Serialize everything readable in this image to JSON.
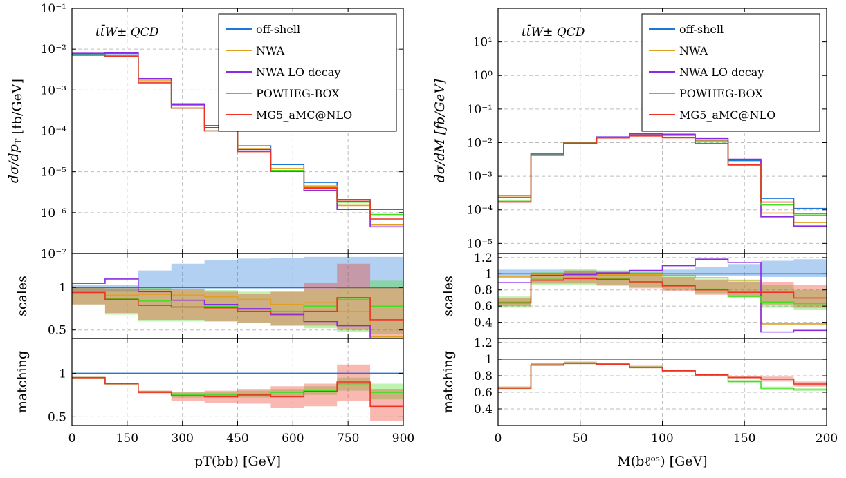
{
  "colors": {
    "off-shell": "#1f77d9",
    "NWA": "#e0a020",
    "NWA LO decay": "#8a2be2",
    "POWHEG-BOX": "#44dd22",
    "MG5_aMC@NLO": "#ee3322"
  },
  "legend_labels": [
    "off-shell",
    "NWA",
    "NWA LO decay",
    "POWHEG-BOX",
    "MG5_aMC@NLO"
  ],
  "chart_data": [
    {
      "type": "line",
      "annotation": "tt̄W± QCD",
      "xlabel": "pT(bb) [GeV]",
      "x_edges": [
        0,
        90,
        180,
        270,
        360,
        450,
        540,
        630,
        720,
        810,
        900
      ],
      "xlim": [
        0,
        900
      ],
      "x_ticks": [
        "0",
        "150",
        "300",
        "450",
        "600",
        "750",
        "900"
      ],
      "x_tick_values": [
        0,
        150,
        300,
        450,
        600,
        750,
        900
      ],
      "legend_position": "top-right",
      "grid": true,
      "panels": [
        {
          "ylabel": "dσ/dpT [fb/GeV]",
          "log_scale": true,
          "ylim": [
            1e-07,
            0.1
          ],
          "y_ticks": [
            "10⁻¹",
            "10⁻²",
            "10⁻³",
            "10⁻⁴",
            "10⁻⁵",
            "10⁻⁶",
            "10⁻⁷"
          ],
          "y_tick_values": [
            0.1,
            0.01,
            0.001,
            0.0001,
            1e-05,
            1e-06,
            1e-07
          ],
          "series": [
            {
              "name": "off-shell",
              "values": [
                0.0076,
                0.0078,
                0.0019,
                0.00046,
                0.000135,
                4.3e-05,
                1.5e-05,
                5.5e-06,
                2.1e-06,
                1.2e-06
              ]
            },
            {
              "name": "NWA",
              "values": [
                0.0072,
                0.0071,
                0.00175,
                0.00042,
                0.00012,
                3.7e-05,
                1.2e-05,
                4.5e-06,
                1.5e-06,
                5e-07
              ]
            },
            {
              "name": "NWA LO decay",
              "values": [
                0.0079,
                0.0082,
                0.0019,
                0.00044,
                0.00012,
                3.5e-05,
                1.05e-05,
                3.5e-06,
                1.2e-06,
                4.5e-07
              ]
            },
            {
              "name": "POWHEG-BOX",
              "values": [
                0.0072,
                0.0068,
                0.0016,
                0.00036,
                0.0001,
                3.2e-05,
                1.08e-05,
                4.2e-06,
                1.8e-06,
                9e-07
              ]
            },
            {
              "name": "MG5_aMC@NLO",
              "values": [
                0.0071,
                0.0067,
                0.0015,
                0.00036,
                0.0001,
                3.1e-05,
                1.02e-05,
                4e-06,
                1.9e-06,
                7e-07
              ]
            }
          ]
        },
        {
          "ylabel": "scales",
          "ylim": [
            0.4,
            1.4
          ],
          "y_ticks": [
            "1",
            "0.5"
          ],
          "y_tick_values": [
            1,
            0.5
          ],
          "bands": [
            {
              "name": "off-shell",
              "low": [
                0.95,
                0.95,
                0.97,
                0.98,
                0.98,
                0.98,
                0.98,
                0.98,
                0.98,
                0.98
              ],
              "high": [
                1.03,
                1.03,
                1.2,
                1.28,
                1.32,
                1.34,
                1.35,
                1.36,
                1.36,
                1.36
              ]
            },
            {
              "name": "POWHEG-BOX",
              "low": [
                0.8,
                0.68,
                0.6,
                0.6,
                0.6,
                0.58,
                0.55,
                0.52,
                0.48,
                0.45
              ],
              "high": [
                1.0,
                0.99,
                1.0,
                0.98,
                0.97,
                0.95,
                0.95,
                0.98,
                1.0,
                1.08
              ]
            },
            {
              "name": "MG5_aMC@NLO",
              "low": [
                0.8,
                0.7,
                0.62,
                0.62,
                0.6,
                0.58,
                0.55,
                0.55,
                0.5,
                0.4
              ],
              "high": [
                1.0,
                0.99,
                0.98,
                0.98,
                0.95,
                0.92,
                0.95,
                1.05,
                1.28,
                1.0
              ]
            }
          ],
          "series": [
            {
              "name": "off-shell",
              "values": [
                1.0,
                1.0,
                1.0,
                1.0,
                1.0,
                1.0,
                1.0,
                1.0,
                1.0,
                1.0
              ]
            },
            {
              "name": "NWA",
              "values": [
                0.95,
                0.91,
                0.92,
                0.91,
                0.89,
                0.86,
                0.8,
                0.82,
                0.72,
                0.42
              ]
            },
            {
              "name": "NWA LO decay",
              "values": [
                1.05,
                1.1,
                0.95,
                0.85,
                0.8,
                0.75,
                0.68,
                0.6,
                0.55,
                0.37
              ]
            },
            {
              "name": "POWHEG-BOX",
              "values": [
                0.95,
                0.87,
                0.84,
                0.77,
                0.78,
                0.74,
                0.72,
                0.78,
                0.86,
                0.78
              ]
            },
            {
              "name": "MG5_aMC@NLO",
              "values": [
                0.94,
                0.86,
                0.79,
                0.77,
                0.76,
                0.72,
                0.69,
                0.72,
                0.88,
                0.62
              ]
            }
          ]
        },
        {
          "ylabel": "matching",
          "ylim": [
            0.4,
            1.4
          ],
          "y_ticks": [
            "1",
            "0.5"
          ],
          "y_tick_values": [
            1,
            0.5
          ],
          "bands": [
            {
              "name": "POWHEG-BOX",
              "low": [
                0.94,
                0.87,
                0.77,
                0.72,
                0.72,
                0.72,
                0.74,
                0.75,
                0.8,
                0.7
              ],
              "high": [
                0.96,
                0.89,
                0.8,
                0.78,
                0.78,
                0.8,
                0.82,
                0.85,
                0.95,
                0.88
              ]
            },
            {
              "name": "MG5_aMC@NLO",
              "low": [
                0.94,
                0.87,
                0.77,
                0.68,
                0.66,
                0.65,
                0.6,
                0.62,
                0.68,
                0.45
              ],
              "high": [
                0.96,
                0.89,
                0.8,
                0.78,
                0.8,
                0.82,
                0.85,
                0.88,
                1.1,
                0.82
              ]
            }
          ],
          "series": [
            {
              "name": "off-shell",
              "values": [
                1.0,
                1.0,
                1.0,
                1.0,
                1.0,
                1.0,
                1.0,
                1.0,
                1.0,
                1.0
              ]
            },
            {
              "name": "POWHEG-BOX",
              "values": [
                0.95,
                0.88,
                0.79,
                0.75,
                0.75,
                0.76,
                0.78,
                0.8,
                0.88,
                0.78
              ]
            },
            {
              "name": "MG5_aMC@NLO",
              "values": [
                0.95,
                0.88,
                0.78,
                0.74,
                0.73,
                0.75,
                0.73,
                0.79,
                0.9,
                0.62
              ]
            }
          ]
        }
      ]
    },
    {
      "type": "line",
      "annotation": "tt̄W± QCD",
      "xlabel": "M(bℓᵒˢ) [GeV]",
      "x_edges": [
        0,
        20,
        40,
        60,
        80,
        100,
        120,
        140,
        160,
        180,
        200
      ],
      "xlim": [
        0,
        200
      ],
      "x_ticks": [
        "0",
        "50",
        "100",
        "150",
        "200"
      ],
      "x_tick_values": [
        0,
        50,
        100,
        150,
        200
      ],
      "legend_position": "top-right",
      "grid": true,
      "panels": [
        {
          "ylabel": "dσ/dM [fb/GeV]",
          "log_scale": true,
          "ylim": [
            5e-06,
            100
          ],
          "y_ticks": [
            "10¹",
            "10⁰",
            "10⁻¹",
            "10⁻²",
            "10⁻³",
            "10⁻⁴",
            "10⁻⁵"
          ],
          "y_tick_values": [
            10,
            1,
            0.1,
            0.01,
            0.001,
            0.0001,
            1e-05
          ],
          "series": [
            {
              "name": "off-shell",
              "values": [
                0.00027,
                0.0046,
                0.0102,
                0.0148,
                0.0175,
                0.0165,
                0.0118,
                0.0029,
                0.00022,
                0.00011
              ]
            },
            {
              "name": "NWA",
              "values": [
                0.00024,
                0.0045,
                0.0101,
                0.0146,
                0.0172,
                0.0162,
                0.0112,
                0.0022,
                8e-05,
                4.2e-05
              ]
            },
            {
              "name": "NWA LO decay",
              "values": [
                0.00023,
                0.0045,
                0.0101,
                0.0147,
                0.0182,
                0.0178,
                0.0132,
                0.0032,
                6.2e-05,
                3.3e-05
              ]
            },
            {
              "name": "POWHEG-BOX",
              "values": [
                0.00018,
                0.0043,
                0.0098,
                0.014,
                0.016,
                0.0143,
                0.0095,
                0.0021,
                0.00014,
                7e-05
              ]
            },
            {
              "name": "MG5_aMC@NLO",
              "values": [
                0.00017,
                0.0042,
                0.0096,
                0.0138,
                0.0158,
                0.014,
                0.0093,
                0.0022,
                0.00017,
                7.8e-05
              ]
            }
          ]
        },
        {
          "ylabel": "scales",
          "ylim": [
            0.2,
            1.25
          ],
          "y_ticks": [
            "1.2",
            "1",
            "0.8",
            "0.6",
            "0.4"
          ],
          "y_tick_values": [
            1.2,
            1.0,
            0.8,
            0.6,
            0.4
          ],
          "bands": [
            {
              "name": "off-shell",
              "low": [
                0.97,
                0.97,
                0.97,
                0.97,
                0.97,
                0.97,
                0.97,
                0.97,
                0.96,
                0.96
              ],
              "high": [
                1.05,
                1.05,
                1.04,
                1.04,
                1.04,
                1.05,
                1.08,
                1.12,
                1.16,
                1.18
              ]
            },
            {
              "name": "POWHEG-BOX",
              "low": [
                0.58,
                0.86,
                0.86,
                0.85,
                0.84,
                0.8,
                0.76,
                0.7,
                0.58,
                0.55
              ],
              "high": [
                0.72,
                1.02,
                1.06,
                1.04,
                1.02,
                0.98,
                0.94,
                0.92,
                0.86,
                0.8
              ]
            },
            {
              "name": "MG5_aMC@NLO",
              "low": [
                0.6,
                0.88,
                0.88,
                0.86,
                0.82,
                0.78,
                0.74,
                0.72,
                0.62,
                0.58
              ],
              "high": [
                0.7,
                1.0,
                1.04,
                1.02,
                1.0,
                0.96,
                0.92,
                0.9,
                0.9,
                0.86
              ]
            }
          ],
          "series": [
            {
              "name": "off-shell",
              "values": [
                1.0,
                1.0,
                1.0,
                1.0,
                1.0,
                1.0,
                1.0,
                1.0,
                1.0,
                1.0
              ]
            },
            {
              "name": "NWA",
              "values": [
                0.96,
                0.99,
                0.99,
                0.99,
                0.99,
                0.98,
                0.95,
                0.92,
                0.38,
                0.38
              ]
            },
            {
              "name": "NWA LO decay",
              "values": [
                0.89,
                0.98,
                0.99,
                1.01,
                1.04,
                1.1,
                1.18,
                1.14,
                0.28,
                0.3
              ]
            },
            {
              "name": "POWHEG-BOX",
              "values": [
                0.65,
                0.93,
                0.95,
                0.94,
                0.9,
                0.86,
                0.81,
                0.72,
                0.65,
                0.63
              ]
            },
            {
              "name": "MG5_aMC@NLO",
              "values": [
                0.64,
                0.92,
                0.94,
                0.93,
                0.9,
                0.85,
                0.8,
                0.77,
                0.77,
                0.7
              ]
            }
          ]
        },
        {
          "ylabel": "matching",
          "ylim": [
            0.2,
            1.25
          ],
          "y_ticks": [
            "1.2",
            "1",
            "0.8",
            "0.6",
            "0.4"
          ],
          "y_tick_values": [
            1.2,
            1.0,
            0.8,
            0.6,
            0.4
          ],
          "bands": [
            {
              "name": "POWHEG-BOX",
              "low": [
                0.64,
                0.92,
                0.94,
                0.93,
                0.89,
                0.85,
                0.8,
                0.72,
                0.63,
                0.62
              ],
              "high": [
                0.67,
                0.95,
                0.97,
                0.95,
                0.92,
                0.87,
                0.82,
                0.75,
                0.67,
                0.65
              ]
            },
            {
              "name": "MG5_aMC@NLO",
              "low": [
                0.64,
                0.92,
                0.94,
                0.93,
                0.89,
                0.85,
                0.8,
                0.76,
                0.73,
                0.67
              ],
              "high": [
                0.67,
                0.95,
                0.97,
                0.95,
                0.92,
                0.87,
                0.82,
                0.8,
                0.79,
                0.73
              ]
            }
          ],
          "series": [
            {
              "name": "off-shell",
              "values": [
                1.0,
                1.0,
                1.0,
                1.0,
                1.0,
                1.0,
                1.0,
                1.0,
                1.0,
                1.0
              ]
            },
            {
              "name": "POWHEG-BOX",
              "values": [
                0.65,
                0.93,
                0.95,
                0.94,
                0.9,
                0.86,
                0.81,
                0.73,
                0.65,
                0.63
              ]
            },
            {
              "name": "MG5_aMC@NLO",
              "values": [
                0.65,
                0.93,
                0.95,
                0.94,
                0.9,
                0.86,
                0.81,
                0.78,
                0.76,
                0.7
              ]
            }
          ]
        }
      ]
    }
  ]
}
